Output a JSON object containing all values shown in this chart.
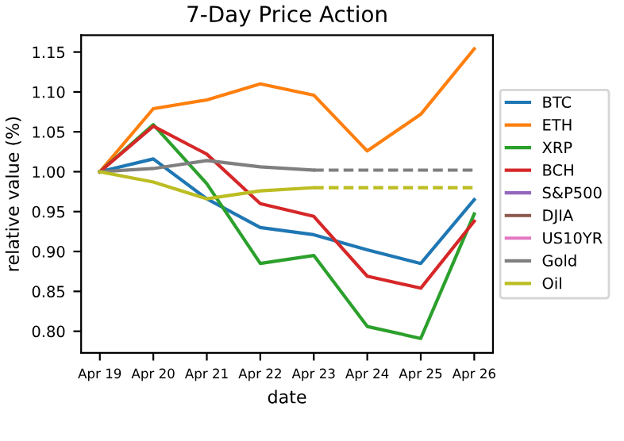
{
  "chart_data": {
    "type": "line",
    "title": "7-Day Price Action",
    "xlabel": "date",
    "ylabel": "relative value (%)",
    "categories": [
      "Apr 19",
      "Apr 20",
      "Apr 21",
      "Apr 22",
      "Apr 23",
      "Apr 24",
      "Apr 25",
      "Apr 26"
    ],
    "series": [
      {
        "name": "BTC",
        "color": "#1f77b4",
        "values": [
          1.0,
          1.016,
          0.966,
          0.93,
          0.921,
          0.902,
          0.885,
          0.965
        ]
      },
      {
        "name": "ETH",
        "color": "#ff7f0e",
        "values": [
          1.0,
          1.079,
          1.09,
          1.11,
          1.096,
          1.026,
          1.072,
          1.154
        ]
      },
      {
        "name": "XRP",
        "color": "#2ca02c",
        "values": [
          1.0,
          1.059,
          0.985,
          0.885,
          0.895,
          0.806,
          0.791,
          0.947
        ]
      },
      {
        "name": "BCH",
        "color": "#d62728",
        "values": [
          1.0,
          1.057,
          1.022,
          0.96,
          0.944,
          0.869,
          0.854,
          0.938
        ]
      },
      {
        "name": "S&P500",
        "color": "#9467bd",
        "values": [
          null,
          null,
          null,
          null,
          null,
          null,
          null,
          null
        ]
      },
      {
        "name": "DJIA",
        "color": "#8c564b",
        "values": [
          null,
          null,
          null,
          null,
          null,
          null,
          null,
          null
        ]
      },
      {
        "name": "US10YR",
        "color": "#e377c2",
        "values": [
          null,
          null,
          null,
          null,
          null,
          null,
          null,
          null
        ]
      },
      {
        "name": "Gold",
        "color": "#7f7f7f",
        "values": [
          1.0,
          1.004,
          1.014,
          1.006,
          1.002,
          null,
          null,
          null
        ]
      },
      {
        "name": "Oil",
        "color": "#bcbd22",
        "values": [
          1.0,
          0.987,
          0.966,
          0.976,
          0.98,
          null,
          null,
          null
        ]
      },
      {
        "color": "#7f7f7f",
        "line_style": "dashed",
        "x": [
          "Apr 23",
          "Apr 24",
          "Apr 25",
          "Apr 26"
        ],
        "values": [
          1.002,
          1.002,
          1.002,
          1.002
        ]
      },
      {
        "color": "#bcbd22",
        "line_style": "dashed",
        "x": [
          "Apr 23",
          "Apr 24",
          "Apr 25",
          "Apr 26"
        ],
        "values": [
          0.98,
          0.98,
          0.98,
          0.98
        ]
      }
    ],
    "ylim": [
      0.773,
      1.171
    ],
    "yticks": [
      {
        "value": 0.8,
        "label": "0.80"
      },
      0.85,
      {
        "value": 0.9,
        "label": "0.90"
      },
      0.95,
      {
        "value": 1.0,
        "label": "1.00"
      },
      1.05,
      {
        "value": 1.1,
        "label": "1.10"
      },
      1.15
    ],
    "legend": "right",
    "grid": false,
    "line_style": "solid",
    "marker": "none"
  }
}
